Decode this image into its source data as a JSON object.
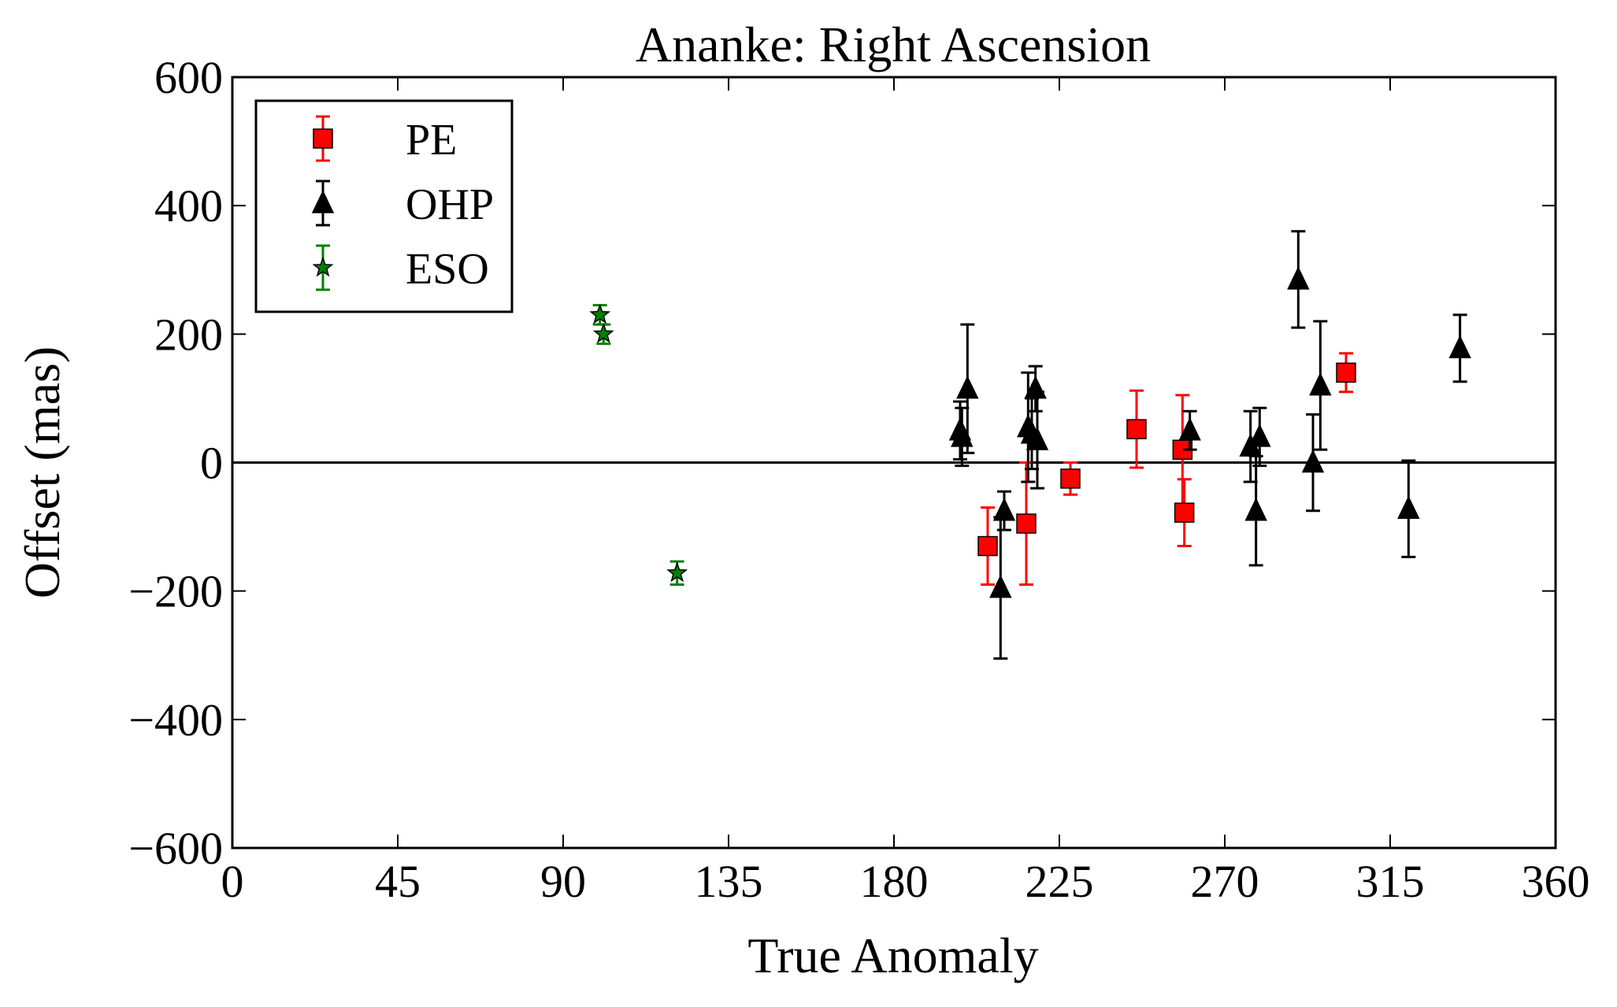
{
  "chart_data": {
    "type": "scatter",
    "title": "Ananke: Right Ascension",
    "xlabel": "True Anomaly",
    "ylabel": "Offset (mas)",
    "xlim": [
      0,
      360
    ],
    "ylim": [
      -600,
      600
    ],
    "xticks": [
      0,
      45,
      90,
      135,
      180,
      225,
      270,
      315,
      360
    ],
    "xtick_labels": [
      "0",
      "45",
      "90",
      "135",
      "180",
      "225",
      "270",
      "315",
      "360"
    ],
    "yticks": [
      -600,
      -400,
      -200,
      0,
      200,
      400,
      600
    ],
    "ytick_labels": [
      "−600",
      "−400",
      "−200",
      "0",
      "200",
      "400",
      "600"
    ],
    "grid": false,
    "legend_position": "top-left",
    "reference_line_y": 0,
    "series": [
      {
        "name": "PE",
        "marker": "square",
        "color": "#ff0000",
        "points": [
          {
            "x": 205.5,
            "y": -130,
            "err": 60
          },
          {
            "x": 216,
            "y": -95,
            "err": 95
          },
          {
            "x": 228,
            "y": -25,
            "err": 25
          },
          {
            "x": 246,
            "y": 52,
            "err": 60
          },
          {
            "x": 258.5,
            "y": 20,
            "err": 85
          },
          {
            "x": 259,
            "y": -78,
            "err": 52
          },
          {
            "x": 303,
            "y": 140,
            "err": 30
          }
        ]
      },
      {
        "name": "OHP",
        "marker": "triangle",
        "color": "#000000",
        "points": [
          {
            "x": 198,
            "y": 50,
            "err": 45
          },
          {
            "x": 198.5,
            "y": 40,
            "err": 45
          },
          {
            "x": 200,
            "y": 115,
            "err": 100
          },
          {
            "x": 209,
            "y": -195,
            "err": 110
          },
          {
            "x": 210,
            "y": -75,
            "err": 30
          },
          {
            "x": 216.5,
            "y": 55,
            "err": 85
          },
          {
            "x": 217.5,
            "y": 45,
            "err": 55
          },
          {
            "x": 218.5,
            "y": 115,
            "err": 35
          },
          {
            "x": 219,
            "y": 35,
            "err": 75
          },
          {
            "x": 260.5,
            "y": 50,
            "err": 30
          },
          {
            "x": 277,
            "y": 25,
            "err": 55
          },
          {
            "x": 278.5,
            "y": -75,
            "err": 85
          },
          {
            "x": 279.5,
            "y": 40,
            "err": 45
          },
          {
            "x": 290,
            "y": 285,
            "err": 75
          },
          {
            "x": 294,
            "y": 0,
            "err": 75
          },
          {
            "x": 296,
            "y": 120,
            "err": 100
          },
          {
            "x": 320,
            "y": -72,
            "err": 75
          },
          {
            "x": 334,
            "y": 178,
            "err": 52
          }
        ]
      },
      {
        "name": "ESO",
        "marker": "star",
        "color": "#008000",
        "points": [
          {
            "x": 100,
            "y": 230,
            "err": 15
          },
          {
            "x": 101,
            "y": 200,
            "err": 15
          },
          {
            "x": 121,
            "y": -172,
            "err": 18
          }
        ]
      }
    ]
  }
}
